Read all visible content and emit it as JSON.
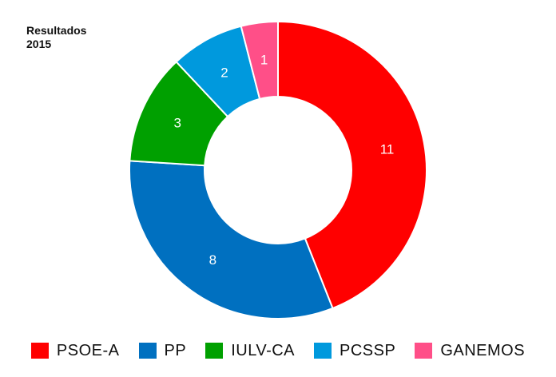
{
  "chart_data": {
    "type": "pie",
    "donut": true,
    "title": [
      "Resultados",
      "2015"
    ],
    "categories": [
      "PSOE-A",
      "PP",
      "IULV-CA",
      "PCSSP",
      "GANEMOS"
    ],
    "values": [
      11,
      8,
      3,
      2,
      1
    ],
    "colors": [
      "#ff0000",
      "#0070c0",
      "#00a000",
      "#0099dd",
      "#ff4f88"
    ],
    "legend_position": "bottom"
  }
}
